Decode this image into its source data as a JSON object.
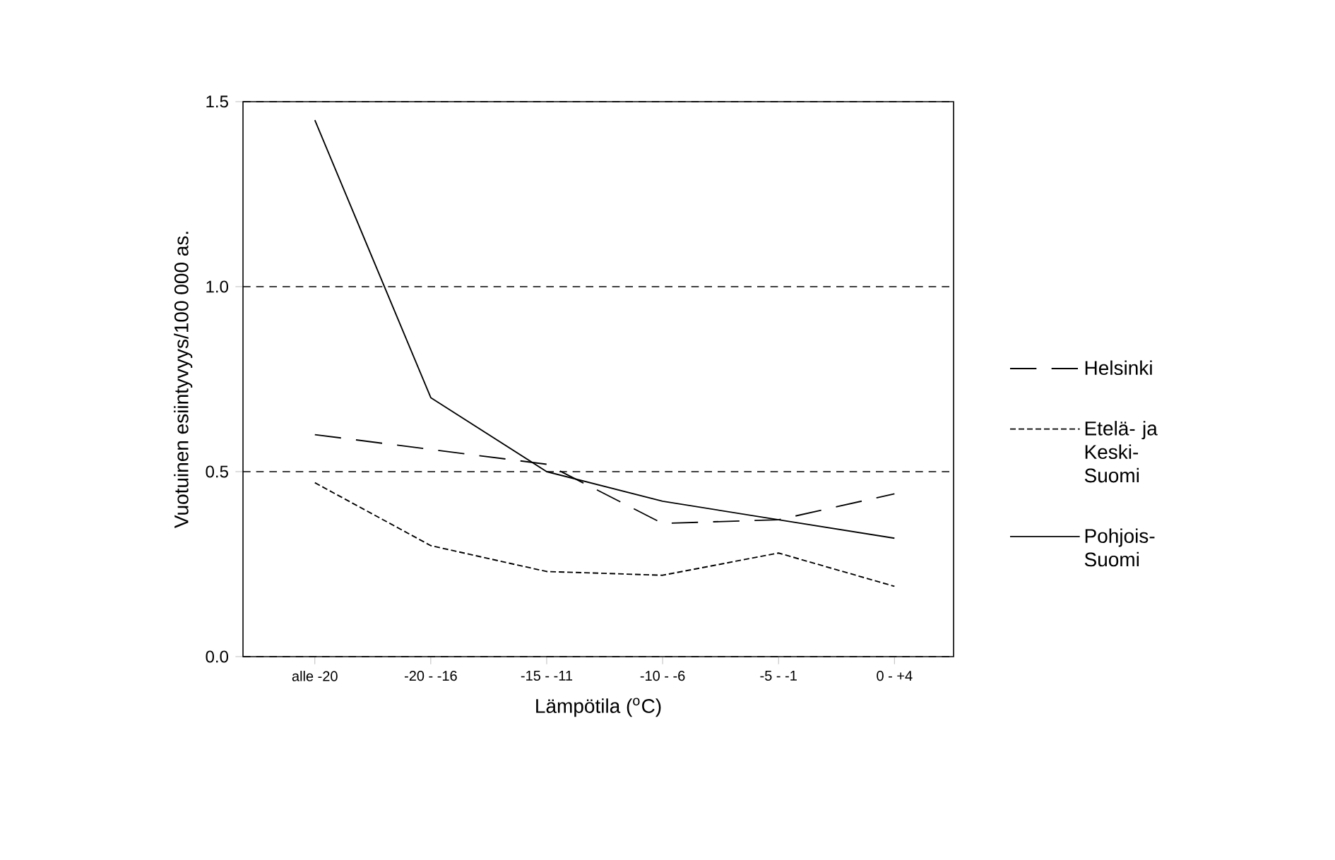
{
  "chart_data": {
    "type": "line",
    "xlabel": "Lämpötila ($^{o}$C)",
    "ylabel": "Vuotuinen esiintyvyys/100 000 as.",
    "categories": [
      "alle -20",
      "-20 - -16",
      "-15 - -11",
      "-10 - -6",
      "-5 - -1",
      "0 - +4"
    ],
    "ylim": [
      0,
      1.5
    ],
    "yticks": [
      {
        "value": 0,
        "label": "0.0"
      },
      0.5,
      {
        "value": 1,
        "label": "1.0"
      },
      1.5
    ],
    "grid": "y",
    "legend": "right",
    "marker": "none",
    "series": [
      {
        "name": "Helsinki",
        "color": "#000000",
        "line_style": "long dashed",
        "values": [
          0.6,
          0.56,
          0.52,
          0.36,
          0.37,
          0.44
        ]
      },
      {
        "name": "Etelä- ja Keski-Suomi",
        "color": "#000000",
        "line_style": "dashed",
        "values": [
          0.47,
          0.3,
          0.23,
          0.22,
          0.28,
          0.19
        ]
      },
      {
        "name": "Pohjois-Suomi",
        "color": "#000000",
        "line_style": "solid",
        "values": [
          1.45,
          0.7,
          0.5,
          0.42,
          0.37,
          0.32
        ]
      }
    ]
  }
}
